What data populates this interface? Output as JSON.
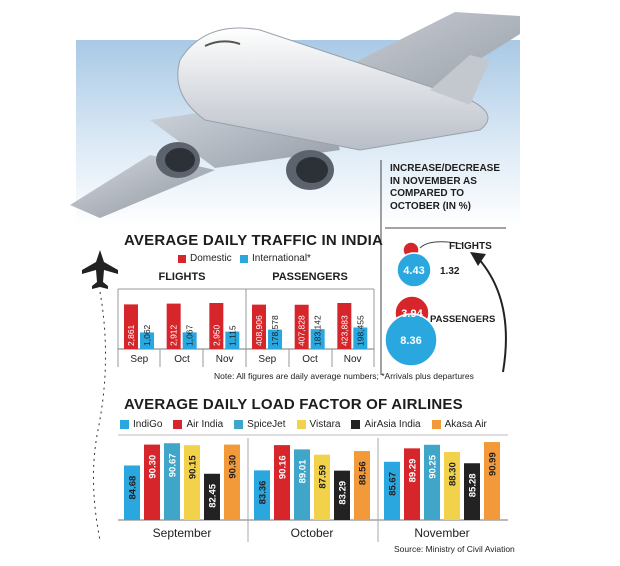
{
  "traffic": {
    "title": "AVERAGE DAILY TRAFFIC IN INDIA",
    "legend": [
      {
        "label": "Domestic",
        "color": "#d7262b"
      },
      {
        "label": "International*",
        "color": "#2aa7df"
      }
    ],
    "flights_title": "FLIGHTS",
    "passengers_title": "PASSENGERS",
    "note": "Note: All figures are daily average numbers; *Arrivals plus departures"
  },
  "change_panel": {
    "title_lines": [
      "INCREASE/DECREASE",
      "IN NOVEMBER AS",
      "COMPARED TO",
      "OCTOBER (IN %)"
    ],
    "flights_label": "FLIGHTS",
    "flights_international": "4.43",
    "flights_domestic": "1.32",
    "passengers_label": "PASSENGERS",
    "passengers_domestic": "3.94",
    "passengers_international": "8.36"
  },
  "load": {
    "title": "AVERAGE DAILY LOAD FACTOR OF AIRLINES",
    "source": "Source: Ministry of Civil Aviation"
  },
  "colors": {
    "domestic": "#d7262b",
    "international": "#2aa7df",
    "IndiGo": "#2aa7df",
    "Air India": "#d7262b",
    "SpiceJet": "#3fa6c9",
    "Vistara": "#f3d24b",
    "AirAsia India": "#222222",
    "Akasa Air": "#f29a3a"
  },
  "chart_data": [
    {
      "type": "bar",
      "title": "FLIGHTS",
      "categories": [
        "Sep",
        "Oct",
        "Nov"
      ],
      "series": [
        {
          "name": "Domestic",
          "values": [
            2861,
            2912,
            2950
          ]
        },
        {
          "name": "International*",
          "values": [
            1062,
            1067,
            1115
          ]
        }
      ],
      "value_labels": {
        "Domestic": [
          "2,861",
          "2,912",
          "2,950"
        ],
        "International*": [
          "1,062",
          "1,067",
          "1,115"
        ]
      }
    },
    {
      "type": "bar",
      "title": "PASSENGERS",
      "categories": [
        "Sep",
        "Oct",
        "Nov"
      ],
      "series": [
        {
          "name": "Domestic",
          "values": [
            408906,
            407828,
            423883
          ]
        },
        {
          "name": "International*",
          "values": [
            178578,
            183142,
            198455
          ]
        }
      ],
      "value_labels": {
        "Domestic": [
          "408,906",
          "407,828",
          "423,883"
        ],
        "International*": [
          "178,578",
          "183,142",
          "198,455"
        ]
      }
    },
    {
      "type": "bar",
      "title": "AVERAGE DAILY LOAD FACTOR OF AIRLINES",
      "categories": [
        "September",
        "October",
        "November"
      ],
      "series": [
        {
          "name": "IndiGo",
          "values": [
            84.68,
            83.36,
            85.67
          ]
        },
        {
          "name": "Air India",
          "values": [
            90.3,
            90.16,
            89.29
          ]
        },
        {
          "name": "SpiceJet",
          "values": [
            90.67,
            89.01,
            90.25
          ]
        },
        {
          "name": "Vistara",
          "values": [
            90.15,
            87.59,
            88.3
          ]
        },
        {
          "name": "AirAsia India",
          "values": [
            82.45,
            83.29,
            85.28
          ]
        },
        {
          "name": "Akasa Air",
          "values": [
            90.3,
            88.56,
            90.99
          ]
        }
      ],
      "value_labels": {
        "IndiGo": [
          "84.68",
          "83.36",
          "85.67"
        ],
        "Air India": [
          "90.30",
          "90.16",
          "89.29"
        ],
        "SpiceJet": [
          "90.67",
          "89.01",
          "90.25"
        ],
        "Vistara": [
          "90.15",
          "87.59",
          "88.30"
        ],
        "AirAsia India": [
          "82.45",
          "83.29",
          "85.28"
        ],
        "Akasa Air": [
          "90.30",
          "88.56",
          "90.99"
        ]
      }
    }
  ]
}
